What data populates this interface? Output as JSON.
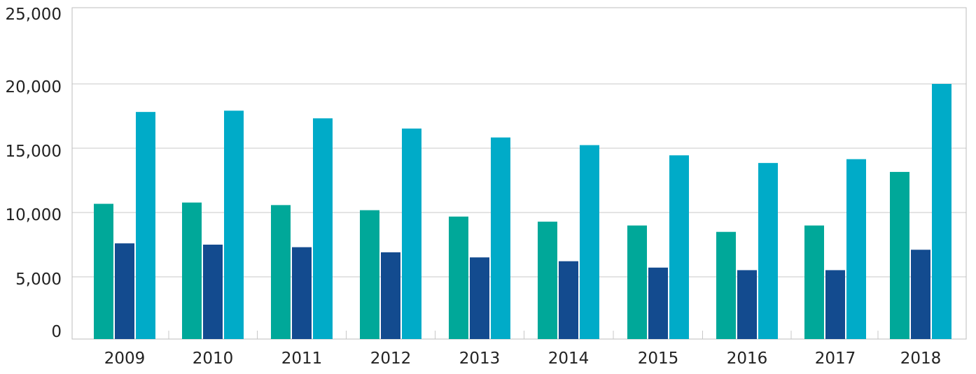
{
  "chart_data": {
    "type": "bar",
    "categories": [
      "2009",
      "2010",
      "2011",
      "2012",
      "2013",
      "2014",
      "2015",
      "2016",
      "2017",
      "2018"
    ],
    "series": [
      {
        "values": [
          10600,
          10700,
          10500,
          10100,
          9600,
          9200,
          8900,
          8400,
          8900,
          13100
        ],
        "color": "#00a899"
      },
      {
        "values": [
          7500,
          7400,
          7200,
          6800,
          6400,
          6100,
          5600,
          5400,
          5400,
          7000
        ],
        "color": "#134b8f"
      },
      {
        "values": [
          17800,
          17900,
          17300,
          16500,
          15800,
          15200,
          14400,
          13800,
          14100,
          20000
        ],
        "color": "#00abc8"
      }
    ],
    "y_ticks": [
      "0",
      "5,000",
      "10,000",
      "15,000",
      "20,000",
      "25,000"
    ],
    "ylim": [
      0,
      25000
    ],
    "grid": true,
    "legend": "none",
    "title": "",
    "xlabel": "",
    "ylabel": ""
  }
}
